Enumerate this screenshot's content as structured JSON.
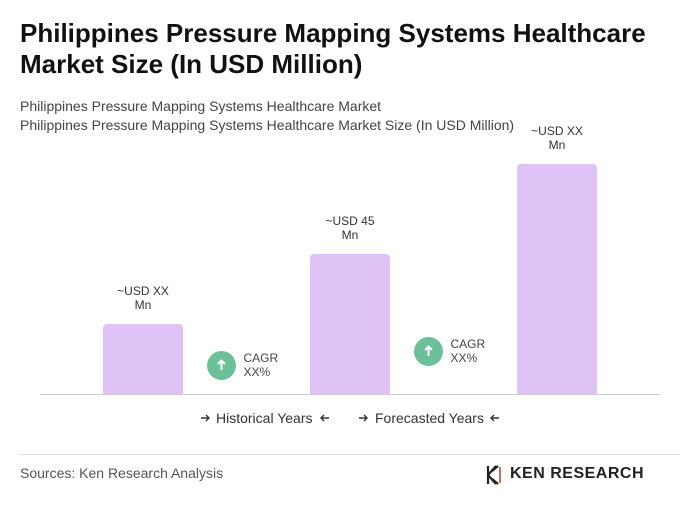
{
  "chart_data": {
    "type": "bar",
    "title": "Philippines Pressure Mapping Systems Healthcare Market Size (In USD Million)",
    "subtitle": [
      "Philippines Pressure Mapping Systems Healthcare Market",
      "Philippines Pressure Mapping Systems Healthcare Market Size (In USD Million)"
    ],
    "categories": [
      null,
      null,
      null
    ],
    "values": [
      22.5,
      45,
      74
    ],
    "value_labels": [
      "~USD XX Mn",
      "~USD 45 Mn",
      "~USD XX Mn"
    ],
    "color": "#dfc3f6",
    "annotations": [
      "CAGR XX%",
      "CAGR XX%"
    ],
    "annotation_color": "#6cc19a",
    "legend": [
      "Historical Years",
      "Forecasted Years"
    ],
    "source": "Sources: Ken Research Analysis",
    "brand": "KEN RESEARCH"
  }
}
